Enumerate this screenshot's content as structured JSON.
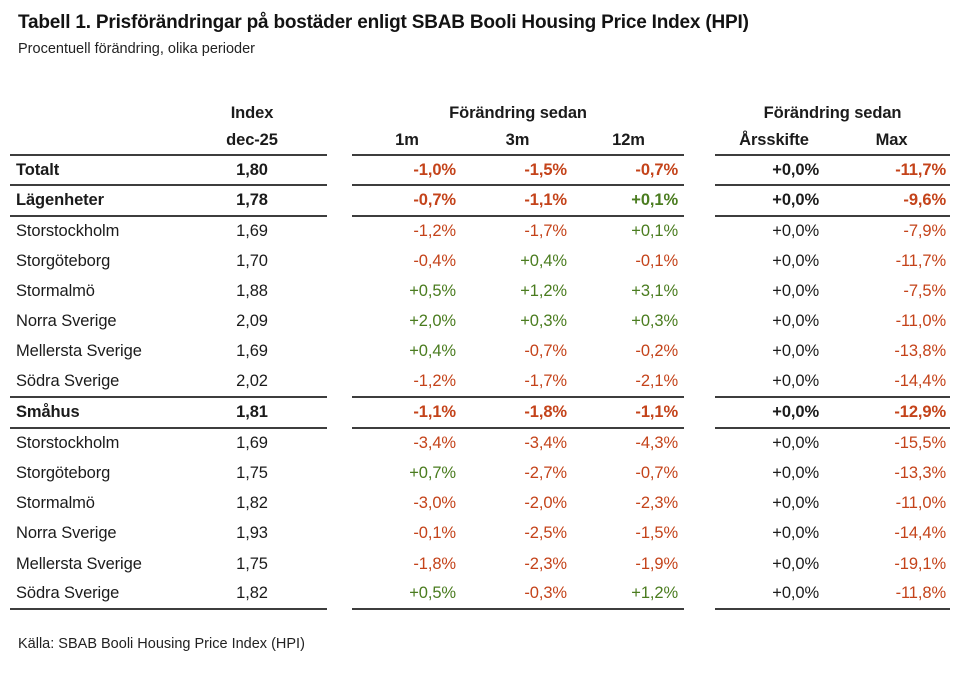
{
  "colors": {
    "negative": "#c4431a",
    "positive": "#4a7c1f",
    "text": "#1b1b1b",
    "rule_line": "#3d3d3d",
    "background": "#ffffff"
  },
  "chart_data": {
    "type": "table",
    "title": "Tabell 1. Prisförändringar på bostäder enligt SBAB Booli Housing Price Index (HPI)",
    "subtitle": "Procentuell förändring, olika perioder",
    "source": "Källa: SBAB Booli Housing Price Index (HPI)",
    "header": {
      "index_top": "Index",
      "index_bottom": "dec-25",
      "change_mid": "Förändring sedan",
      "change_right": "Förändring sedan",
      "period_cols": [
        "1m",
        "3m",
        "12m"
      ],
      "right_cols": [
        "Årsskifte",
        "Max"
      ]
    },
    "rows": [
      {
        "name": "Totalt",
        "index": "1,80",
        "m1": "-1,0%",
        "m3": "-1,5%",
        "m12": "-0,7%",
        "ytd": "+0,0%",
        "max": "-11,7%",
        "bold": true,
        "divider": true
      },
      {
        "name": "Lägenheter",
        "index": "1,78",
        "m1": "-0,7%",
        "m3": "-1,1%",
        "m12": "+0,1%",
        "ytd": "+0,0%",
        "max": "-9,6%",
        "bold": true,
        "divider": true
      },
      {
        "name": "Storstockholm",
        "index": "1,69",
        "m1": "-1,2%",
        "m3": "-1,7%",
        "m12": "+0,1%",
        "ytd": "+0,0%",
        "max": "-7,9%",
        "bold": false,
        "divider": false
      },
      {
        "name": "Storgöteborg",
        "index": "1,70",
        "m1": "-0,4%",
        "m3": "+0,4%",
        "m12": "-0,1%",
        "ytd": "+0,0%",
        "max": "-11,7%",
        "bold": false,
        "divider": false
      },
      {
        "name": "Stormalmö",
        "index": "1,88",
        "m1": "+0,5%",
        "m3": "+1,2%",
        "m12": "+3,1%",
        "ytd": "+0,0%",
        "max": "-7,5%",
        "bold": false,
        "divider": false
      },
      {
        "name": "Norra Sverige",
        "index": "2,09",
        "m1": "+2,0%",
        "m3": "+0,3%",
        "m12": "+0,3%",
        "ytd": "+0,0%",
        "max": "-11,0%",
        "bold": false,
        "divider": false
      },
      {
        "name": "Mellersta Sverige",
        "index": "1,69",
        "m1": "+0,4%",
        "m3": "-0,7%",
        "m12": "-0,2%",
        "ytd": "+0,0%",
        "max": "-13,8%",
        "bold": false,
        "divider": false
      },
      {
        "name": "Södra Sverige",
        "index": "2,02",
        "m1": "-1,2%",
        "m3": "-1,7%",
        "m12": "-2,1%",
        "ytd": "+0,0%",
        "max": "-14,4%",
        "bold": false,
        "divider": true
      },
      {
        "name": "Småhus",
        "index": "1,81",
        "m1": "-1,1%",
        "m3": "-1,8%",
        "m12": "-1,1%",
        "ytd": "+0,0%",
        "max": "-12,9%",
        "bold": true,
        "divider": true
      },
      {
        "name": "Storstockholm",
        "index": "1,69",
        "m1": "-3,4%",
        "m3": "-3,4%",
        "m12": "-4,3%",
        "ytd": "+0,0%",
        "max": "-15,5%",
        "bold": false,
        "divider": false
      },
      {
        "name": "Storgöteborg",
        "index": "1,75",
        "m1": "+0,7%",
        "m3": "-2,7%",
        "m12": "-0,7%",
        "ytd": "+0,0%",
        "max": "-13,3%",
        "bold": false,
        "divider": false
      },
      {
        "name": "Stormalmö",
        "index": "1,82",
        "m1": "-3,0%",
        "m3": "-2,0%",
        "m12": "-2,3%",
        "ytd": "+0,0%",
        "max": "-11,0%",
        "bold": false,
        "divider": false
      },
      {
        "name": "Norra Sverige",
        "index": "1,93",
        "m1": "-0,1%",
        "m3": "-2,5%",
        "m12": "-1,5%",
        "ytd": "+0,0%",
        "max": "-14,4%",
        "bold": false,
        "divider": false
      },
      {
        "name": "Mellersta Sverige",
        "index": "1,75",
        "m1": "-1,8%",
        "m3": "-2,3%",
        "m12": "-1,9%",
        "ytd": "+0,0%",
        "max": "-19,1%",
        "bold": false,
        "divider": false
      },
      {
        "name": "Södra Sverige",
        "index": "1,82",
        "m1": "+0,5%",
        "m3": "-0,3%",
        "m12": "+1,2%",
        "ytd": "+0,0%",
        "max": "-11,8%",
        "bold": false,
        "divider": true
      }
    ]
  }
}
